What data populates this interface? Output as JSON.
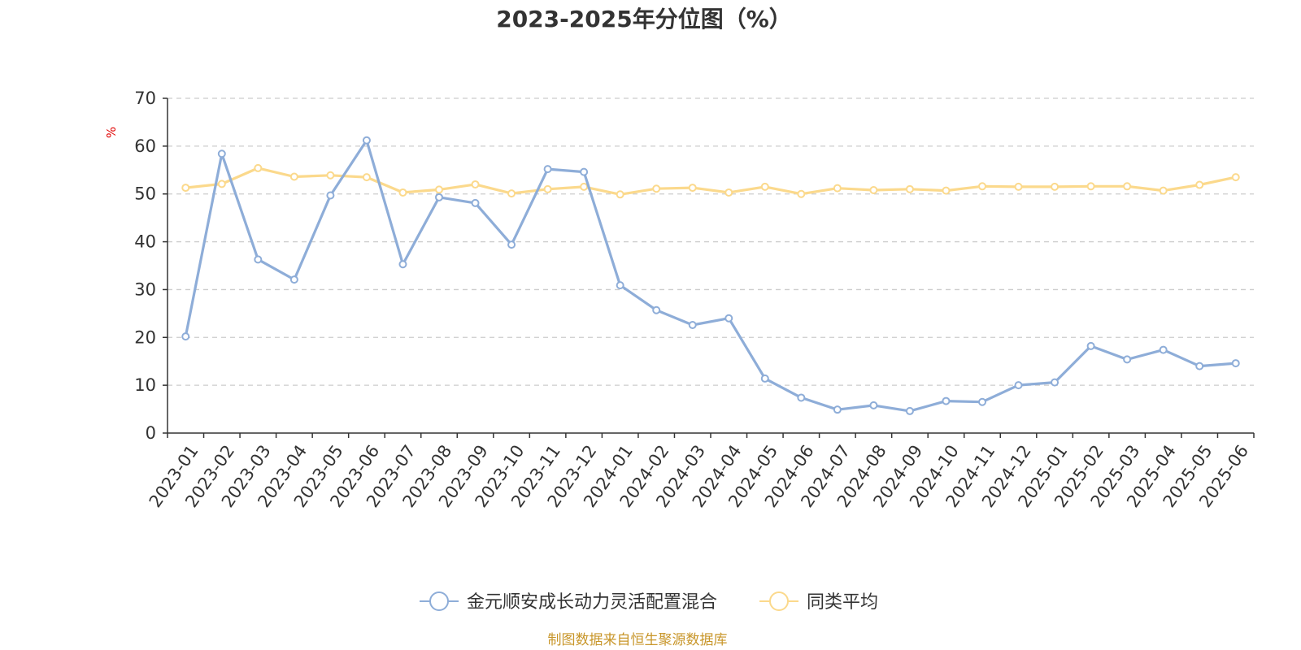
{
  "chart_data": {
    "type": "line",
    "title": "2023-2025年分位图（%）",
    "ylabel": "%",
    "ylim": [
      0,
      70
    ],
    "yticks": [
      0,
      10,
      20,
      30,
      40,
      50,
      60,
      70
    ],
    "grid": true,
    "legend_position": "bottom-center",
    "categories": [
      "2023-01",
      "2023-02",
      "2023-03",
      "2023-04",
      "2023-05",
      "2023-06",
      "2023-07",
      "2023-08",
      "2023-09",
      "2023-10",
      "2023-11",
      "2023-12",
      "2024-01",
      "2024-02",
      "2024-03",
      "2024-04",
      "2024-05",
      "2024-06",
      "2024-07",
      "2024-08",
      "2024-09",
      "2024-10",
      "2024-11",
      "2024-12",
      "2025-01",
      "2025-02",
      "2025-03",
      "2025-04",
      "2025-05",
      "2025-06"
    ],
    "series": [
      {
        "name": "金元顺安成长动力灵活配置混合",
        "color": "#8eadd8",
        "values": [
          20.2,
          58.4,
          36.3,
          32.1,
          49.7,
          61.2,
          35.3,
          49.3,
          48.1,
          39.4,
          55.2,
          54.6,
          30.9,
          25.7,
          22.6,
          24.0,
          11.4,
          7.4,
          4.9,
          5.8,
          4.6,
          6.7,
          6.5,
          10.0,
          10.6,
          18.2,
          15.4,
          17.4,
          14.0,
          14.6
        ]
      },
      {
        "name": "同类平均",
        "color": "#fbd98c",
        "values": [
          51.3,
          52.1,
          55.4,
          53.6,
          53.9,
          53.5,
          50.3,
          50.9,
          52.0,
          50.1,
          51.0,
          51.5,
          49.9,
          51.1,
          51.3,
          50.3,
          51.5,
          50.0,
          51.2,
          50.8,
          51.0,
          50.7,
          51.6,
          51.5,
          51.5,
          51.6,
          51.6,
          50.7,
          51.9,
          53.5
        ]
      }
    ]
  },
  "source": "制图数据来自恒生聚源数据库",
  "colors": {
    "axis": "#333333",
    "grid": "#cccccc",
    "unit": "#e00000",
    "source": "#c8962a"
  }
}
